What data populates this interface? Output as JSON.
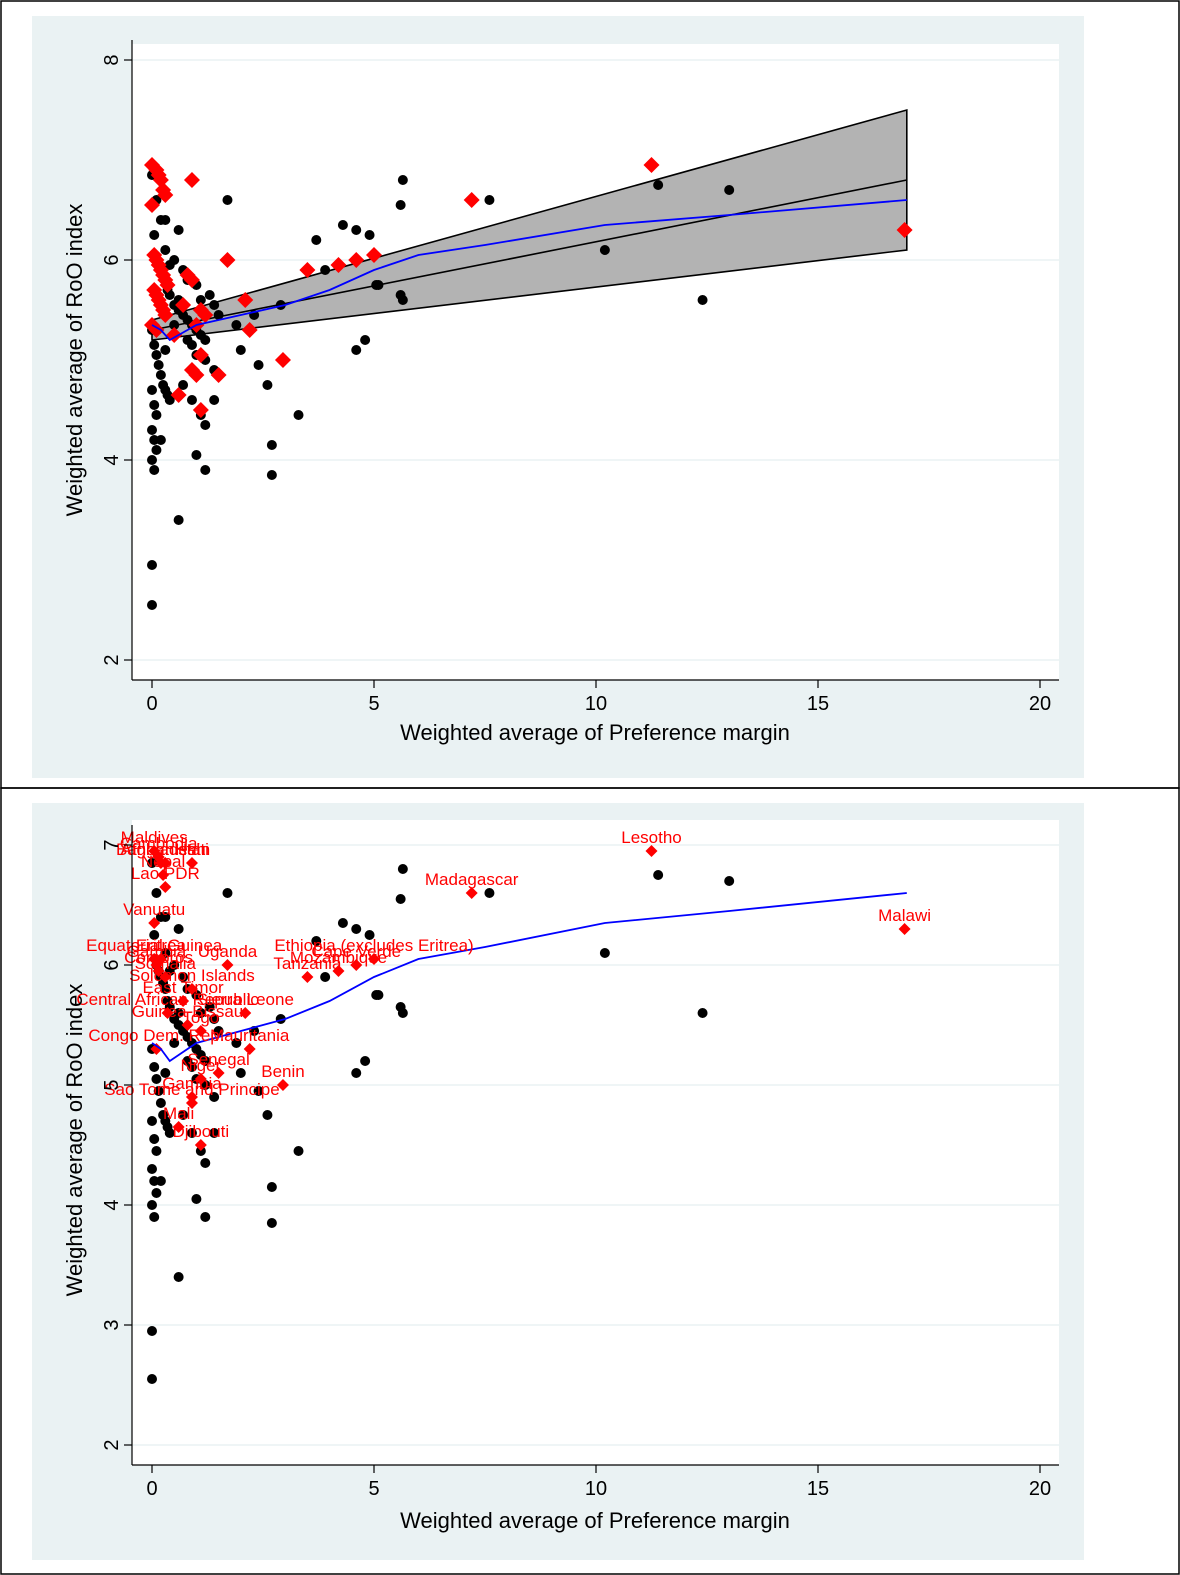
{
  "chart_data": [
    {
      "type": "scatter",
      "xlabel": "Weighted average of Preference margin",
      "ylabel": "Weighted average of RoO index",
      "xlim": [
        0,
        20
      ],
      "ylim": [
        2,
        8
      ],
      "xticks": [
        0,
        5,
        10,
        15,
        20
      ],
      "yticks": [
        2,
        4,
        6,
        8
      ],
      "grid": true,
      "circle_series": [
        [
          0,
          6.85
        ],
        [
          0.1,
          6.6
        ],
        [
          0.2,
          6.4
        ],
        [
          0.3,
          6.4
        ],
        [
          0.05,
          6.25
        ],
        [
          0.1,
          6.0
        ],
        [
          0.15,
          5.95
        ],
        [
          0.2,
          5.9
        ],
        [
          0.25,
          5.85
        ],
        [
          0.3,
          5.8
        ],
        [
          0.35,
          5.7
        ],
        [
          0.4,
          5.65
        ],
        [
          0.5,
          5.55
        ],
        [
          0.6,
          5.5
        ],
        [
          0.7,
          5.45
        ],
        [
          0.8,
          5.4
        ],
        [
          0.9,
          5.35
        ],
        [
          1.0,
          5.3
        ],
        [
          1.1,
          5.25
        ],
        [
          1.2,
          5.2
        ],
        [
          0.0,
          5.3
        ],
        [
          0.05,
          5.15
        ],
        [
          0.1,
          5.05
        ],
        [
          0.15,
          4.95
        ],
        [
          0.2,
          4.85
        ],
        [
          0.25,
          4.75
        ],
        [
          0.3,
          4.7
        ],
        [
          0.35,
          4.65
        ],
        [
          0.4,
          4.6
        ],
        [
          0.0,
          4.7
        ],
        [
          0.05,
          4.55
        ],
        [
          0.1,
          4.45
        ],
        [
          0.0,
          4.3
        ],
        [
          0.05,
          4.2
        ],
        [
          0.0,
          4.0
        ],
        [
          0.05,
          3.9
        ],
        [
          0.6,
          6.3
        ],
        [
          0.5,
          6.0
        ],
        [
          0.7,
          5.9
        ],
        [
          0.8,
          5.8
        ],
        [
          1.0,
          5.75
        ],
        [
          1.1,
          5.6
        ],
        [
          1.3,
          5.65
        ],
        [
          1.4,
          5.55
        ],
        [
          1.5,
          5.45
        ],
        [
          0.9,
          5.15
        ],
        [
          1.0,
          5.05
        ],
        [
          1.2,
          5.0
        ],
        [
          1.4,
          4.9
        ],
        [
          0.7,
          4.75
        ],
        [
          0.9,
          4.6
        ],
        [
          1.1,
          4.45
        ],
        [
          1.2,
          4.35
        ],
        [
          1.4,
          4.6
        ],
        [
          1.0,
          4.05
        ],
        [
          1.2,
          3.9
        ],
        [
          0.6,
          3.4
        ],
        [
          0.0,
          2.95
        ],
        [
          0.0,
          2.55
        ],
        [
          1.7,
          6.6
        ],
        [
          1.9,
          5.35
        ],
        [
          2.0,
          5.1
        ],
        [
          2.3,
          5.45
        ],
        [
          2.4,
          4.95
        ],
        [
          2.6,
          4.75
        ],
        [
          2.7,
          4.15
        ],
        [
          2.7,
          3.85
        ],
        [
          2.9,
          5.55
        ],
        [
          3.3,
          4.45
        ],
        [
          3.7,
          6.2
        ],
        [
          3.9,
          5.9
        ],
        [
          4.3,
          6.35
        ],
        [
          4.6,
          6.3
        ],
        [
          4.9,
          6.25
        ],
        [
          4.6,
          5.1
        ],
        [
          4.8,
          5.2
        ],
        [
          5.05,
          5.75
        ],
        [
          5.1,
          5.75
        ],
        [
          5.6,
          5.65
        ],
        [
          5.65,
          5.6
        ],
        [
          5.6,
          6.55
        ],
        [
          5.65,
          6.8
        ],
        [
          7.6,
          6.6
        ],
        [
          10.2,
          6.1
        ],
        [
          11.4,
          6.75
        ],
        [
          12.4,
          5.6
        ],
        [
          13.0,
          6.7
        ],
        [
          0.3,
          6.1
        ],
        [
          0.4,
          5.95
        ],
        [
          0.6,
          5.6
        ],
        [
          0.8,
          5.2
        ],
        [
          0.2,
          4.2
        ],
        [
          0.1,
          4.1
        ],
        [
          0.3,
          5.1
        ],
        [
          0.5,
          5.35
        ]
      ],
      "diamond_series": [
        [
          0.0,
          6.95
        ],
        [
          0.1,
          6.9
        ],
        [
          0.15,
          6.85
        ],
        [
          0.2,
          6.8
        ],
        [
          0.25,
          6.7
        ],
        [
          0.3,
          6.65
        ],
        [
          0.0,
          6.55
        ],
        [
          0.05,
          6.05
        ],
        [
          0.1,
          6.0
        ],
        [
          0.15,
          5.95
        ],
        [
          0.2,
          5.9
        ],
        [
          0.25,
          5.85
        ],
        [
          0.3,
          5.8
        ],
        [
          0.35,
          5.75
        ],
        [
          0.05,
          5.7
        ],
        [
          0.1,
          5.65
        ],
        [
          0.15,
          5.6
        ],
        [
          0.2,
          5.55
        ],
        [
          0.25,
          5.5
        ],
        [
          0.3,
          5.45
        ],
        [
          0.0,
          5.35
        ],
        [
          0.1,
          5.3
        ],
        [
          0.5,
          5.25
        ],
        [
          0.6,
          4.65
        ],
        [
          0.7,
          5.55
        ],
        [
          0.8,
          5.85
        ],
        [
          0.9,
          5.8
        ],
        [
          0.9,
          6.8
        ],
        [
          1.0,
          5.35
        ],
        [
          1.1,
          5.5
        ],
        [
          1.2,
          5.45
        ],
        [
          0.9,
          4.9
        ],
        [
          1.0,
          4.85
        ],
        [
          1.1,
          5.05
        ],
        [
          1.5,
          4.85
        ],
        [
          1.1,
          4.5
        ],
        [
          1.7,
          6.0
        ],
        [
          2.1,
          5.6
        ],
        [
          2.2,
          5.3
        ],
        [
          2.95,
          5.0
        ],
        [
          3.5,
          5.9
        ],
        [
          4.2,
          5.95
        ],
        [
          4.6,
          6.0
        ],
        [
          5.0,
          6.05
        ],
        [
          7.2,
          6.6
        ],
        [
          11.25,
          6.95
        ],
        [
          16.95,
          6.3
        ]
      ],
      "lowess_line": [
        [
          0.0,
          5.35
        ],
        [
          0.2,
          5.3
        ],
        [
          0.4,
          5.2
        ],
        [
          0.6,
          5.25
        ],
        [
          1.0,
          5.35
        ],
        [
          1.5,
          5.4
        ],
        [
          2.0,
          5.45
        ],
        [
          3.0,
          5.55
        ],
        [
          4.0,
          5.7
        ],
        [
          5.0,
          5.9
        ],
        [
          6.0,
          6.05
        ],
        [
          7.5,
          6.15
        ],
        [
          10.2,
          6.35
        ],
        [
          13.0,
          6.45
        ],
        [
          17.0,
          6.6
        ]
      ],
      "fit_line": [
        [
          0.0,
          5.3
        ],
        [
          17.0,
          6.8
        ]
      ],
      "ci_band_upper": [
        [
          0.0,
          5.4
        ],
        [
          17.0,
          7.5
        ]
      ],
      "ci_band_lower": [
        [
          0.0,
          5.2
        ],
        [
          17.0,
          6.1
        ]
      ]
    },
    {
      "type": "scatter",
      "xlabel": "Weighted average of Preference margin",
      "ylabel": "Weighted average of RoO index",
      "xlim": [
        0,
        20
      ],
      "ylim": [
        2,
        7
      ],
      "xticks": [
        0,
        5,
        10,
        15,
        20
      ],
      "yticks": [
        2,
        3,
        4,
        5,
        6,
        7
      ],
      "grid": true,
      "circle_series": [
        [
          0,
          6.85
        ],
        [
          0.1,
          6.6
        ],
        [
          0.2,
          6.4
        ],
        [
          0.3,
          6.4
        ],
        [
          0.05,
          6.25
        ],
        [
          0.1,
          6.0
        ],
        [
          0.15,
          5.95
        ],
        [
          0.2,
          5.9
        ],
        [
          0.25,
          5.85
        ],
        [
          0.3,
          5.8
        ],
        [
          0.35,
          5.7
        ],
        [
          0.4,
          5.65
        ],
        [
          0.5,
          5.55
        ],
        [
          0.6,
          5.5
        ],
        [
          0.7,
          5.45
        ],
        [
          0.8,
          5.4
        ],
        [
          0.9,
          5.35
        ],
        [
          1.0,
          5.3
        ],
        [
          1.1,
          5.25
        ],
        [
          1.2,
          5.2
        ],
        [
          0.0,
          5.3
        ],
        [
          0.05,
          5.15
        ],
        [
          0.1,
          5.05
        ],
        [
          0.15,
          4.95
        ],
        [
          0.2,
          4.85
        ],
        [
          0.25,
          4.75
        ],
        [
          0.3,
          4.7
        ],
        [
          0.35,
          4.65
        ],
        [
          0.4,
          4.6
        ],
        [
          0.0,
          4.7
        ],
        [
          0.05,
          4.55
        ],
        [
          0.1,
          4.45
        ],
        [
          0.0,
          4.3
        ],
        [
          0.05,
          4.2
        ],
        [
          0.0,
          4.0
        ],
        [
          0.05,
          3.9
        ],
        [
          0.6,
          6.3
        ],
        [
          0.5,
          6.0
        ],
        [
          0.7,
          5.9
        ],
        [
          0.8,
          5.8
        ],
        [
          1.0,
          5.75
        ],
        [
          1.1,
          5.6
        ],
        [
          1.3,
          5.65
        ],
        [
          1.4,
          5.55
        ],
        [
          1.5,
          5.45
        ],
        [
          0.9,
          5.15
        ],
        [
          1.0,
          5.05
        ],
        [
          1.2,
          5.0
        ],
        [
          1.4,
          4.9
        ],
        [
          0.7,
          4.75
        ],
        [
          0.9,
          4.6
        ],
        [
          1.1,
          4.45
        ],
        [
          1.2,
          4.35
        ],
        [
          1.4,
          4.6
        ],
        [
          1.0,
          4.05
        ],
        [
          1.2,
          3.9
        ],
        [
          0.6,
          3.4
        ],
        [
          0.0,
          2.95
        ],
        [
          0.0,
          2.55
        ],
        [
          1.7,
          6.6
        ],
        [
          1.9,
          5.35
        ],
        [
          2.0,
          5.1
        ],
        [
          2.3,
          5.45
        ],
        [
          2.4,
          4.95
        ],
        [
          2.6,
          4.75
        ],
        [
          2.7,
          4.15
        ],
        [
          2.7,
          3.85
        ],
        [
          2.9,
          5.55
        ],
        [
          3.3,
          4.45
        ],
        [
          3.7,
          6.2
        ],
        [
          3.9,
          5.9
        ],
        [
          4.3,
          6.35
        ],
        [
          4.6,
          6.3
        ],
        [
          4.9,
          6.25
        ],
        [
          4.6,
          5.1
        ],
        [
          4.8,
          5.2
        ],
        [
          5.05,
          5.75
        ],
        [
          5.1,
          5.75
        ],
        [
          5.6,
          5.65
        ],
        [
          5.65,
          5.6
        ],
        [
          5.6,
          6.55
        ],
        [
          5.65,
          6.8
        ],
        [
          7.6,
          6.6
        ],
        [
          10.2,
          6.1
        ],
        [
          11.4,
          6.75
        ],
        [
          12.4,
          5.6
        ],
        [
          13.0,
          6.7
        ],
        [
          0.3,
          6.1
        ],
        [
          0.4,
          5.95
        ],
        [
          0.6,
          5.6
        ],
        [
          0.8,
          5.2
        ],
        [
          0.2,
          4.2
        ],
        [
          0.1,
          4.1
        ],
        [
          0.3,
          5.1
        ],
        [
          0.5,
          5.35
        ]
      ],
      "labeled_points": [
        {
          "label": "Maldives",
          "x": 0.05,
          "y": 6.95
        },
        {
          "label": "Cambodia",
          "x": 0.15,
          "y": 6.9
        },
        {
          "label": "Afghanistan",
          "x": 0.3,
          "y": 6.85
        },
        {
          "label": "Bangladesh",
          "x": 0.2,
          "y": 6.85
        },
        {
          "label": "Haiti",
          "x": 0.9,
          "y": 6.85
        },
        {
          "label": "Nepal",
          "x": 0.25,
          "y": 6.75
        },
        {
          "label": "Lao PDR",
          "x": 0.3,
          "y": 6.65
        },
        {
          "label": "Vanuatu",
          "x": 0.05,
          "y": 6.35
        },
        {
          "label": "Uganda",
          "x": 1.7,
          "y": 6.0
        },
        {
          "label": "Gambia",
          "x": 0.1,
          "y": 6.0
        },
        {
          "label": "Equatorial Guinea",
          "x": 0.05,
          "y": 6.05
        },
        {
          "label": "Eritrea",
          "x": 0.2,
          "y": 6.05
        },
        {
          "label": "Comoros",
          "x": 0.15,
          "y": 5.95
        },
        {
          "label": "Somalia",
          "x": 0.3,
          "y": 5.9
        },
        {
          "label": "Ethiopia (excludes Eritrea)",
          "x": 5.0,
          "y": 6.05
        },
        {
          "label": "Cape Verde",
          "x": 4.6,
          "y": 6.0
        },
        {
          "label": "Mozambique",
          "x": 4.2,
          "y": 5.95
        },
        {
          "label": "Tanzania",
          "x": 3.5,
          "y": 5.9
        },
        {
          "label": "Solomon Islands",
          "x": 0.9,
          "y": 5.8
        },
        {
          "label": "East Timor",
          "x": 0.7,
          "y": 5.7
        },
        {
          "label": "Central African Republic",
          "x": 0.35,
          "y": 5.6
        },
        {
          "label": "Sierra Leone",
          "x": 2.1,
          "y": 5.6
        },
        {
          "label": "Guinea-Bissau",
          "x": 0.8,
          "y": 5.5
        },
        {
          "label": "Togo",
          "x": 1.1,
          "y": 5.45
        },
        {
          "label": "Mauritania",
          "x": 2.2,
          "y": 5.3
        },
        {
          "label": "Congo Dem. Rep.",
          "x": 0.1,
          "y": 5.3
        },
        {
          "label": "Senegal",
          "x": 1.5,
          "y": 5.1
        },
        {
          "label": "Benin",
          "x": 2.95,
          "y": 5.0
        },
        {
          "label": "Gambia",
          "x": 0.9,
          "y": 4.9
        },
        {
          "label": "Niger",
          "x": 1.1,
          "y": 5.05
        },
        {
          "label": "Sao Tome and Principe",
          "x": 0.9,
          "y": 4.85
        },
        {
          "label": "Mali",
          "x": 0.6,
          "y": 4.65
        },
        {
          "label": "Djibouti",
          "x": 1.1,
          "y": 4.5
        },
        {
          "label": "Madagascar",
          "x": 7.2,
          "y": 6.6
        },
        {
          "label": "Lesotho",
          "x": 11.25,
          "y": 6.95
        },
        {
          "label": "Malawi",
          "x": 16.95,
          "y": 6.3
        }
      ],
      "lowess_line": [
        [
          0.0,
          5.35
        ],
        [
          0.2,
          5.3
        ],
        [
          0.4,
          5.2
        ],
        [
          0.6,
          5.25
        ],
        [
          1.0,
          5.35
        ],
        [
          1.5,
          5.4
        ],
        [
          2.0,
          5.45
        ],
        [
          3.0,
          5.55
        ],
        [
          4.0,
          5.7
        ],
        [
          5.0,
          5.9
        ],
        [
          6.0,
          6.05
        ],
        [
          7.5,
          6.15
        ],
        [
          10.2,
          6.35
        ],
        [
          13.0,
          6.45
        ],
        [
          17.0,
          6.6
        ]
      ]
    }
  ]
}
